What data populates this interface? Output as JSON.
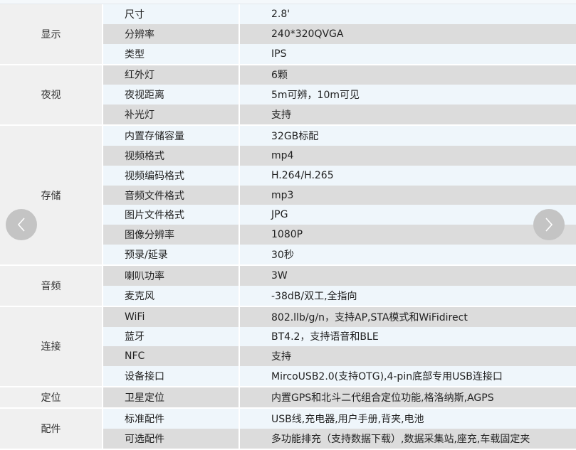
{
  "groups": [
    {
      "name": "显示",
      "rows": [
        [
          "尺寸",
          "2.8'"
        ],
        [
          "分辨率",
          "240*320QVGA"
        ],
        [
          "类型",
          "IPS"
        ]
      ]
    },
    {
      "name": "夜视",
      "rows": [
        [
          "红外灯",
          "6颗"
        ],
        [
          "夜视距离",
          "5m可辨，10m可见"
        ],
        [
          "补光灯",
          "支持"
        ]
      ]
    },
    {
      "name": "存储",
      "rows": [
        [
          "内置存储容量",
          "32GB标配"
        ],
        [
          "视频格式",
          "mp4"
        ],
        [
          "视频编码格式",
          "H.264/H.265"
        ],
        [
          "音频文件格式",
          "mp3"
        ],
        [
          "图片文件格式",
          "JPG"
        ],
        [
          "图像分辨率",
          "1080P"
        ],
        [
          "预录/延录",
          "30秒"
        ]
      ]
    },
    {
      "name": "音频",
      "rows": [
        [
          "喇叭功率",
          "3W"
        ],
        [
          "麦克风",
          "-38dB/双工,全指向"
        ]
      ]
    },
    {
      "name": "连接",
      "rows": [
        [
          "WiFi",
          "802.llb/g/n，支持AP,STA模式和WiFidirect"
        ],
        [
          "蓝牙",
          "BT4.2，支持语音和BLE"
        ],
        [
          "NFC",
          "支持"
        ],
        [
          "设备接口",
          "MircoUSB2.0(支持OTG),4-pin底部专用USB连接口"
        ]
      ]
    },
    {
      "name": "定位",
      "rows": [
        [
          "卫星定位",
          "内置GPS和北斗二代组合定位功能,格洛纳斯,AGPS"
        ]
      ]
    },
    {
      "name": "配件",
      "rows": [
        [
          "标准配件",
          "USB线,充电器,用户手册,背夹,电池"
        ],
        [
          "可选配件",
          "多功能排充（支持数据下载）,数据采集站,座充,车载固定夹"
        ]
      ]
    }
  ],
  "nav": {
    "prev_icon": "chevron-left-icon",
    "next_icon": "chevron-right-icon",
    "button_color": "#c4c4c4"
  },
  "colors": {
    "row_light": "#eff6fb",
    "row_dark": "#dcdcdc",
    "group_cell": "#f0f0f0"
  }
}
